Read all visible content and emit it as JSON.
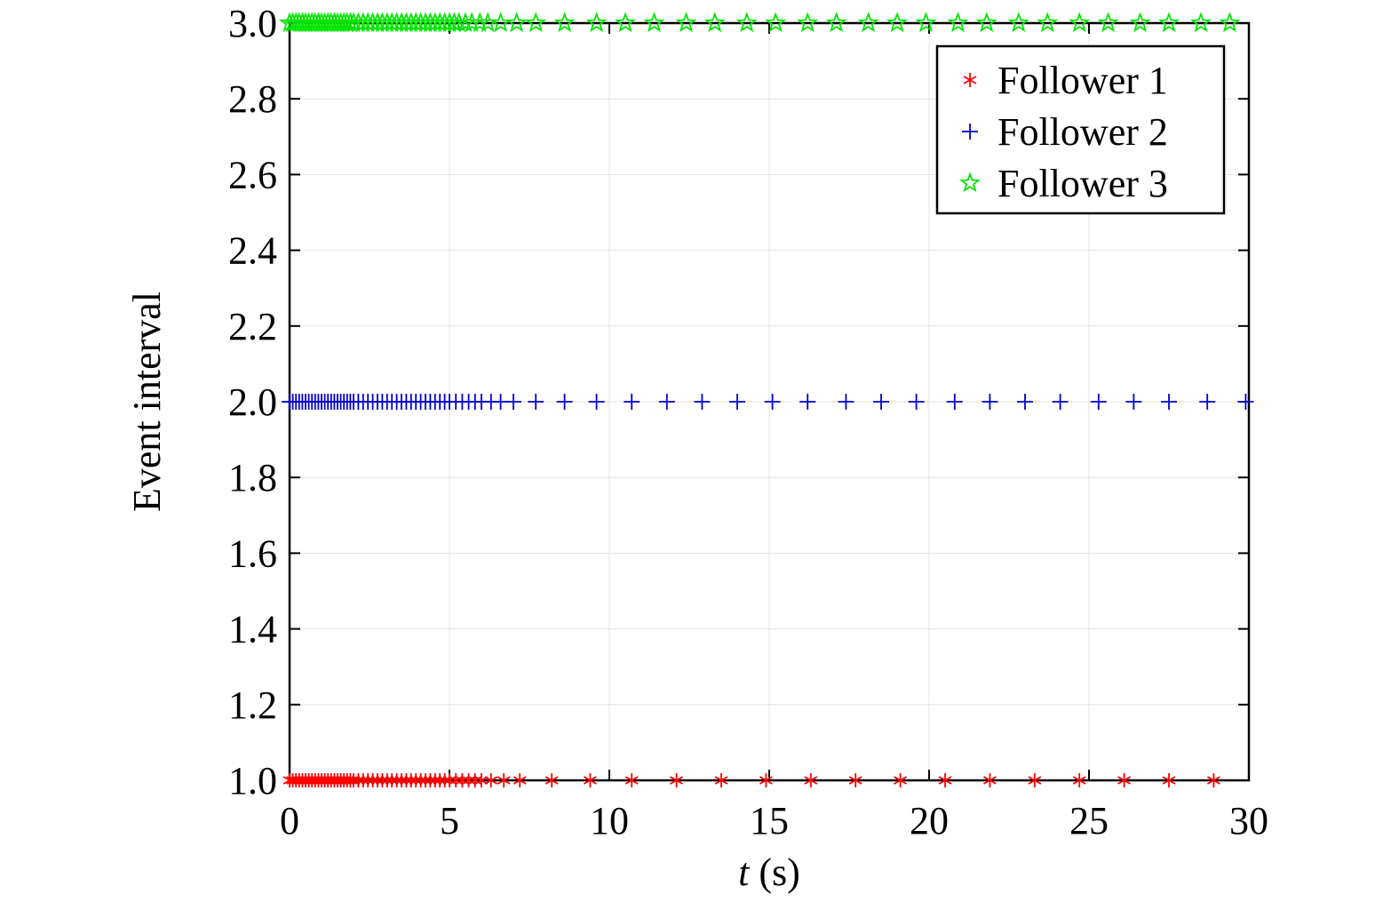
{
  "chart_data": {
    "type": "scatter",
    "title": "",
    "xlabel_italic": "t",
    "xlabel_rest": " (s)",
    "ylabel": "Event interval",
    "xlim": [
      0,
      30
    ],
    "ylim": [
      1.0,
      3.0
    ],
    "xticks": [
      0,
      5,
      10,
      15,
      20,
      25,
      30
    ],
    "xtick_labels": [
      "0",
      "5",
      "10",
      "15",
      "20",
      "25",
      "30"
    ],
    "yticks": [
      1.0,
      1.2,
      1.4,
      1.6,
      1.8,
      2.0,
      2.2,
      2.4,
      2.6,
      2.8,
      3.0
    ],
    "ytick_labels": [
      "1.0",
      "1.2",
      "1.4",
      "1.6",
      "1.8",
      "2.0",
      "2.2",
      "2.4",
      "2.6",
      "2.8",
      "3.0"
    ],
    "grid": true,
    "legend_position": "top-right",
    "series": [
      {
        "name": "Follower 1",
        "marker": "asterisk",
        "color": "#ff0000",
        "y": 1.0,
        "x": [
          0.0,
          0.1,
          0.2,
          0.3,
          0.4,
          0.5,
          0.6,
          0.7,
          0.8,
          0.9,
          1.0,
          1.1,
          1.2,
          1.3,
          1.4,
          1.5,
          1.6,
          1.7,
          1.8,
          1.9,
          2.0,
          2.15,
          2.3,
          2.45,
          2.6,
          2.75,
          2.9,
          3.05,
          3.2,
          3.35,
          3.5,
          3.65,
          3.8,
          3.95,
          4.1,
          4.25,
          4.4,
          4.55,
          4.7,
          4.85,
          5.0,
          5.2,
          5.4,
          5.6,
          5.8,
          6.0,
          6.3,
          6.7,
          7.2,
          8.2,
          9.4,
          10.7,
          12.1,
          13.5,
          14.9,
          16.3,
          17.7,
          19.1,
          20.5,
          21.9,
          23.3,
          24.7,
          26.1,
          27.5,
          28.9
        ]
      },
      {
        "name": "Follower 2",
        "marker": "plus",
        "color": "#0000cc",
        "y": 2.0,
        "x": [
          0.0,
          0.1,
          0.2,
          0.3,
          0.4,
          0.5,
          0.6,
          0.7,
          0.8,
          0.9,
          1.0,
          1.1,
          1.2,
          1.3,
          1.4,
          1.5,
          1.6,
          1.7,
          1.8,
          1.9,
          2.0,
          2.15,
          2.3,
          2.45,
          2.6,
          2.75,
          2.9,
          3.05,
          3.2,
          3.35,
          3.5,
          3.65,
          3.8,
          3.95,
          4.1,
          4.25,
          4.4,
          4.55,
          4.7,
          4.85,
          5.0,
          5.2,
          5.4,
          5.6,
          5.8,
          6.0,
          6.3,
          6.6,
          7.0,
          7.7,
          8.6,
          9.6,
          10.7,
          11.8,
          12.9,
          14.0,
          15.1,
          16.2,
          17.4,
          18.5,
          19.6,
          20.8,
          21.9,
          23.0,
          24.1,
          25.3,
          26.4,
          27.5,
          28.7,
          29.9
        ]
      },
      {
        "name": "Follower 3",
        "marker": "star",
        "color": "#00e600",
        "y": 3.0,
        "x": [
          0.0,
          0.1,
          0.2,
          0.3,
          0.4,
          0.5,
          0.6,
          0.7,
          0.8,
          0.9,
          1.0,
          1.1,
          1.2,
          1.3,
          1.4,
          1.5,
          1.6,
          1.7,
          1.8,
          1.9,
          2.0,
          2.15,
          2.3,
          2.45,
          2.6,
          2.75,
          2.9,
          3.05,
          3.2,
          3.35,
          3.5,
          3.65,
          3.8,
          3.95,
          4.1,
          4.25,
          4.4,
          4.55,
          4.7,
          4.85,
          5.0,
          5.15,
          5.3,
          5.5,
          5.7,
          5.95,
          6.2,
          6.6,
          7.1,
          7.7,
          8.6,
          9.6,
          10.5,
          11.4,
          12.4,
          13.3,
          14.3,
          15.2,
          16.2,
          17.1,
          18.1,
          19.0,
          19.9,
          20.9,
          21.8,
          22.8,
          23.7,
          24.7,
          25.6,
          26.6,
          27.5,
          28.5,
          29.4
        ]
      }
    ]
  }
}
